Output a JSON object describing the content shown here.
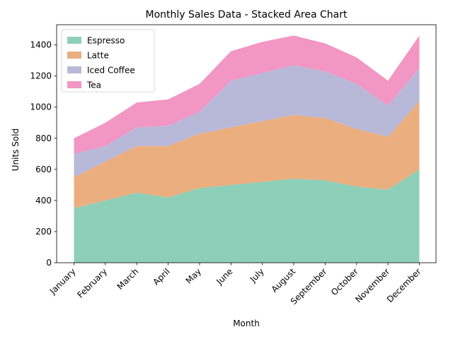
{
  "chart_data": {
    "type": "area",
    "stacked": true,
    "title": "Monthly Sales Data - Stacked Area Chart",
    "xlabel": "Month",
    "ylabel": "Units Sold",
    "categories": [
      "January",
      "February",
      "March",
      "April",
      "May",
      "June",
      "July",
      "August",
      "September",
      "October",
      "November",
      "December"
    ],
    "ylim": [
      0,
      1530
    ],
    "yticks": [
      0,
      200,
      400,
      600,
      800,
      1000,
      1200,
      1400
    ],
    "grid": false,
    "legend_position": "top-left",
    "series": [
      {
        "name": "Espresso",
        "color": "#8ecfb9",
        "values": [
          350,
          400,
          450,
          420,
          480,
          500,
          520,
          540,
          530,
          490,
          470,
          600
        ]
      },
      {
        "name": "Latte",
        "color": "#ebae7f",
        "values": [
          200,
          250,
          300,
          330,
          350,
          370,
          390,
          410,
          400,
          370,
          340,
          440
        ]
      },
      {
        "name": "Iced Coffee",
        "color": "#b8b8d9",
        "values": [
          150,
          100,
          120,
          130,
          140,
          300,
          310,
          320,
          300,
          290,
          200,
          210
        ]
      },
      {
        "name": "Tea",
        "color": "#f296c4",
        "values": [
          100,
          150,
          160,
          170,
          180,
          190,
          200,
          190,
          180,
          170,
          160,
          210
        ]
      }
    ]
  }
}
